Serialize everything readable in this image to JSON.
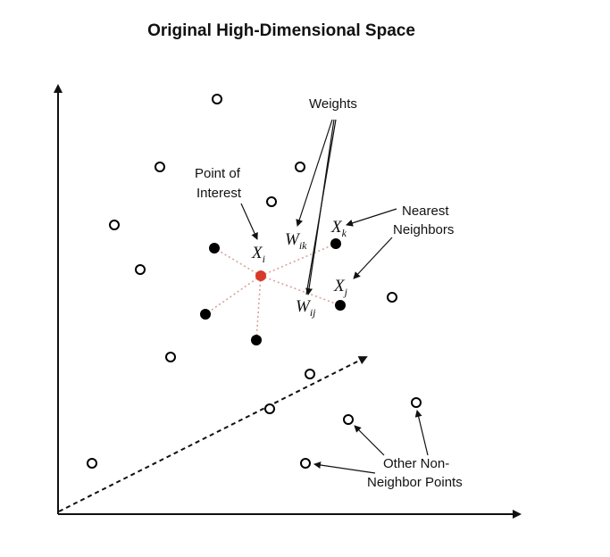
{
  "title": "Original High-Dimensional Space",
  "labels": {
    "weights": "Weights",
    "point_of_interest_line1": "Point of",
    "point_of_interest_line2": "Interest",
    "nearest_line1": "Nearest",
    "nearest_line2": "Neighbors",
    "other_line1": "Other Non-",
    "other_line2": "Neighbor Points"
  },
  "math": {
    "xi": {
      "base": "X",
      "sub": "i"
    },
    "xk": {
      "base": "X",
      "sub": "k"
    },
    "xj": {
      "base": "X",
      "sub": "j"
    },
    "wik": {
      "base": "W",
      "sub": "ik"
    },
    "wij": {
      "base": "W",
      "sub": "ij"
    }
  },
  "colors": {
    "point_of_interest": "#d63a2a",
    "neighbor": "#000000",
    "non_neighbor_stroke": "#000000",
    "connector": "#d9a39b"
  }
}
